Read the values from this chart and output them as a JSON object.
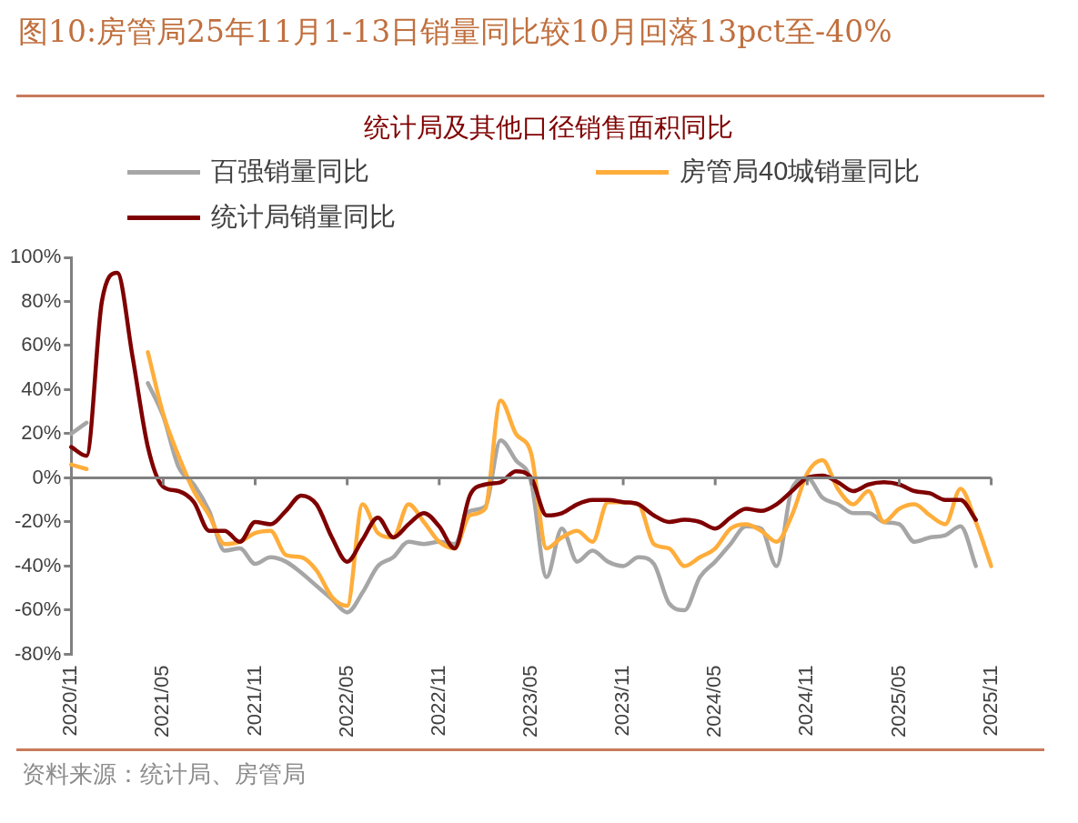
{
  "chart_data": {
    "type": "line",
    "title": "图10:房管局25年11月1-13日销量同比较10月回落13pct至-40%",
    "subtitle": "统计局及其他口径销售面积同比",
    "annotations": [
      "资料来源：统计局、房管局"
    ],
    "categories": [
      "2020/11",
      null,
      null,
      null,
      null,
      null,
      "2021/05",
      null,
      null,
      null,
      null,
      null,
      "2021/11",
      null,
      null,
      null,
      null,
      null,
      "2022/05",
      null,
      null,
      null,
      null,
      null,
      "2022/11",
      null,
      null,
      null,
      null,
      null,
      "2023/05",
      null,
      null,
      null,
      null,
      null,
      "2023/11",
      null,
      null,
      null,
      null,
      null,
      "2024/05",
      null,
      null,
      null,
      null,
      null,
      "2024/11",
      null,
      null,
      null,
      null,
      null,
      "2025/05",
      null,
      null,
      null,
      null,
      null,
      "2025/11"
    ],
    "series": [
      {
        "name": "百强销量同比",
        "color": "#a6a6a6",
        "values": [
          20,
          25,
          null,
          null,
          null,
          43,
          28,
          5,
          -3,
          -15,
          -33,
          -32,
          -39,
          -36,
          -38,
          -43,
          -49,
          -55,
          -61,
          -52,
          -40,
          -36,
          -29,
          -30,
          -29,
          -30,
          -15,
          -13,
          17,
          8,
          -2,
          -45,
          -23,
          -38,
          -33,
          -38,
          -40,
          -36,
          -39,
          -57,
          -60,
          -45,
          -38,
          -30,
          -22,
          -23,
          -40,
          -5,
          0,
          -9,
          -12,
          -16,
          -16,
          -20,
          -21,
          -29,
          -27,
          -26,
          -22,
          -40,
          null
        ]
      },
      {
        "name": "房管局40城销量同比",
        "color": "#ffad3b",
        "values": [
          6,
          4,
          null,
          null,
          null,
          57,
          29,
          10,
          -6,
          -17,
          -30,
          -29,
          -25,
          -24,
          -35,
          -36,
          -42,
          -54,
          -58,
          -12,
          -25,
          -27,
          -12,
          -20,
          -29,
          -32,
          -17,
          -14,
          35,
          20,
          11,
          -32,
          -27,
          -24,
          -29,
          -11,
          -11,
          -12,
          -30,
          -32,
          -40,
          -36,
          -32,
          -23,
          -21,
          -24,
          -29,
          -17,
          2,
          8,
          -5,
          -12,
          -6,
          -20,
          -14,
          -12,
          -17,
          -21,
          -5,
          -20,
          -40
        ]
      },
      {
        "name": "统计局销量同比",
        "color": "#7f0000",
        "values": [
          14,
          10,
          80,
          93,
          55,
          14,
          -4,
          -6,
          -11,
          -24,
          -24,
          -29,
          -20,
          -21,
          -15,
          -8,
          -12,
          -27,
          -38,
          -28,
          -18,
          -27,
          -21,
          -16,
          -22,
          -32,
          -8,
          -3,
          -2,
          3,
          0,
          -17,
          -16,
          -12,
          -10,
          -10,
          -11,
          -12,
          -17,
          -20,
          -19,
          -20,
          -23,
          -18,
          -14,
          -15,
          -12,
          -6,
          0,
          1,
          -2,
          -6,
          -3,
          -2,
          -3,
          -6,
          -7,
          -10,
          -10,
          -19,
          null
        ]
      }
    ],
    "ylim": [
      -80,
      100
    ],
    "yticks": [
      {
        "value": -80,
        "label": "-80%"
      },
      {
        "value": -60,
        "label": "-60%"
      },
      {
        "value": -40,
        "label": "-40%"
      },
      {
        "value": -20,
        "label": "-20%"
      },
      {
        "value": 0,
        "label": "0%"
      },
      {
        "value": 20,
        "label": "20%"
      },
      {
        "value": 40,
        "label": "40%"
      },
      {
        "value": 60,
        "label": "60%"
      },
      {
        "value": 80,
        "label": "80%"
      },
      {
        "value": 100,
        "label": "100%"
      }
    ],
    "legend": "top",
    "line_style": "solid",
    "marker": "none"
  }
}
